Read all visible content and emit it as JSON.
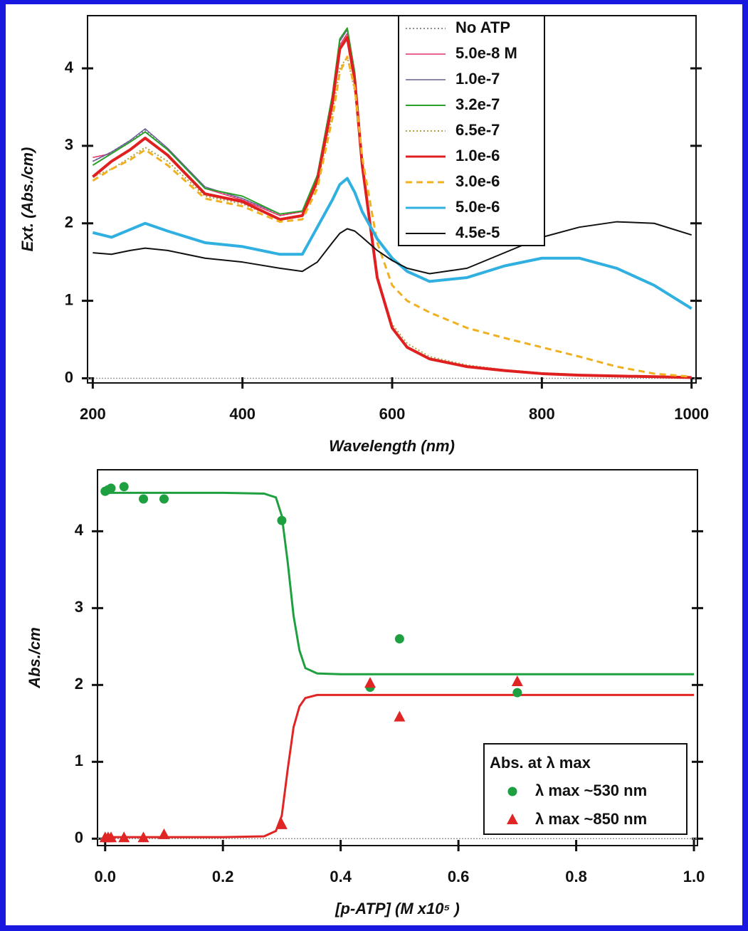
{
  "chart_data": [
    {
      "type": "line",
      "x_label": "Wavelength (nm)",
      "y_label": "Ext. (Abs./cm)",
      "xlim": [
        193,
        1006
      ],
      "ylim": [
        -0.06,
        4.68
      ],
      "xticks": [
        200,
        400,
        600,
        800,
        1000
      ],
      "yticks": [
        0,
        1,
        2,
        3,
        4
      ],
      "legend": "upper right",
      "x": [
        200,
        225,
        250,
        270,
        300,
        350,
        400,
        450,
        480,
        500,
        520,
        530,
        540,
        550,
        560,
        580,
        600,
        620,
        650,
        700,
        750,
        800,
        850,
        900,
        950,
        1000
      ],
      "series": [
        {
          "name": "No ATP",
          "color": "#8a8a8a",
          "style": "dotted",
          "width": 2,
          "values": [
            2.8,
            2.92,
            3.07,
            3.2,
            2.96,
            2.45,
            2.32,
            2.1,
            2.15,
            2.62,
            3.65,
            4.35,
            4.5,
            3.92,
            2.8,
            1.3,
            0.65,
            0.4,
            0.25,
            0.15,
            0.1,
            0.06,
            0.04,
            0.03,
            0.02,
            0.01
          ]
        },
        {
          "name": "5.0e-8 M",
          "color": "#e0306a",
          "style": "solid",
          "width": 1.5,
          "values": [
            2.85,
            2.9,
            3.05,
            3.18,
            2.95,
            2.45,
            2.3,
            2.1,
            2.15,
            2.6,
            3.6,
            4.3,
            4.45,
            3.9,
            2.8,
            1.3,
            0.65,
            0.4,
            0.25,
            0.15,
            0.1,
            0.06,
            0.04,
            0.03,
            0.02,
            0.01
          ]
        },
        {
          "name": "1.0e-7",
          "color": "#6a5a9a",
          "style": "solid",
          "width": 1.5,
          "values": [
            2.8,
            2.92,
            3.07,
            3.22,
            2.97,
            2.47,
            2.32,
            2.12,
            2.16,
            2.62,
            3.65,
            4.35,
            4.5,
            3.95,
            2.82,
            1.3,
            0.65,
            0.4,
            0.25,
            0.15,
            0.1,
            0.06,
            0.04,
            0.03,
            0.02,
            0.01
          ]
        },
        {
          "name": "3.2e-7",
          "color": "#2ca02c",
          "style": "solid",
          "width": 2,
          "values": [
            2.75,
            2.9,
            3.05,
            3.18,
            2.95,
            2.45,
            2.35,
            2.12,
            2.16,
            2.62,
            3.65,
            4.38,
            4.52,
            3.95,
            2.82,
            1.3,
            0.66,
            0.4,
            0.25,
            0.15,
            0.1,
            0.06,
            0.04,
            0.03,
            0.02,
            0.01
          ]
        },
        {
          "name": "6.5e-7",
          "color": "#b0a040",
          "style": "dotted",
          "width": 2,
          "values": [
            2.6,
            2.7,
            2.85,
            2.98,
            2.8,
            2.35,
            2.25,
            2.05,
            2.1,
            2.5,
            3.4,
            4.0,
            4.15,
            3.7,
            2.7,
            1.3,
            0.7,
            0.45,
            0.28,
            0.17,
            0.11,
            0.07,
            0.05,
            0.03,
            0.02,
            0.01
          ]
        },
        {
          "name": "1.0e-6",
          "color": "#e02020",
          "style": "solid",
          "width": 4,
          "values": [
            2.6,
            2.8,
            2.95,
            3.1,
            2.88,
            2.38,
            2.28,
            2.05,
            2.1,
            2.55,
            3.55,
            4.25,
            4.4,
            3.85,
            2.75,
            1.3,
            0.65,
            0.4,
            0.25,
            0.15,
            0.1,
            0.06,
            0.04,
            0.03,
            0.02,
            0.01
          ]
        },
        {
          "name": "3.0e-6",
          "color": "#f0b020",
          "style": "dashed",
          "width": 3,
          "values": [
            2.55,
            2.7,
            2.82,
            2.95,
            2.75,
            2.32,
            2.22,
            2.02,
            2.05,
            2.45,
            3.35,
            3.95,
            4.15,
            3.75,
            2.85,
            1.75,
            1.2,
            1.0,
            0.85,
            0.65,
            0.52,
            0.4,
            0.28,
            0.15,
            0.06,
            0.02
          ]
        },
        {
          "name": "5.0e-6",
          "color": "#30b0e0",
          "style": "solid",
          "width": 4,
          "values": [
            1.88,
            1.82,
            1.92,
            2.0,
            1.9,
            1.75,
            1.7,
            1.6,
            1.6,
            1.95,
            2.3,
            2.5,
            2.58,
            2.4,
            2.15,
            1.8,
            1.55,
            1.38,
            1.25,
            1.3,
            1.45,
            1.55,
            1.55,
            1.42,
            1.2,
            0.9
          ]
        },
        {
          "name": "4.5e-5",
          "color": "#111111",
          "style": "solid",
          "width": 2,
          "values": [
            1.62,
            1.6,
            1.65,
            1.68,
            1.65,
            1.55,
            1.5,
            1.42,
            1.38,
            1.5,
            1.75,
            1.87,
            1.93,
            1.9,
            1.82,
            1.65,
            1.52,
            1.42,
            1.35,
            1.42,
            1.62,
            1.82,
            1.95,
            2.02,
            2.0,
            1.85
          ]
        }
      ]
    },
    {
      "type": "scatter",
      "x_label": "[p-ATP] (M  x10⁵ )",
      "y_label": "Abs./cm",
      "xlim": [
        -0.013,
        1.006
      ],
      "ylim": [
        -0.09,
        4.8
      ],
      "xticks": [
        {
          "value": 0,
          "label": "0.0"
        },
        0.2,
        0.4,
        0.6,
        0.8,
        {
          "value": 1,
          "label": "1.0"
        }
      ],
      "yticks": [
        0,
        1,
        2,
        3,
        4
      ],
      "legend": "lower right",
      "legend_title": "Abs. at λ max",
      "series": [
        {
          "name": "λ max ~530 nm",
          "color": "#1fa040",
          "marker": "circle",
          "x": [
            0,
            0.005,
            0.01,
            0.032,
            0.065,
            0.1,
            0.3,
            0.45,
            0.5,
            0.7
          ],
          "values": [
            4.52,
            4.54,
            4.56,
            4.58,
            4.42,
            4.42,
            4.14,
            1.97,
            2.6,
            1.9
          ]
        },
        {
          "name": "λ max ~850 nm",
          "color": "#e02525",
          "marker": "triangle",
          "x": [
            0,
            0.005,
            0.01,
            0.032,
            0.065,
            0.1,
            0.3,
            0.45,
            0.5,
            0.7
          ],
          "values": [
            0.01,
            0.01,
            0.01,
            0.01,
            0.01,
            0.05,
            0.18,
            2.02,
            1.58,
            2.04
          ]
        }
      ],
      "fits": [
        {
          "color": "#1fa040",
          "x": [
            0,
            0.1,
            0.2,
            0.27,
            0.29,
            0.3,
            0.31,
            0.32,
            0.33,
            0.34,
            0.36,
            0.4,
            0.6,
            0.8,
            1.0
          ],
          "values": [
            4.5,
            4.5,
            4.5,
            4.49,
            4.44,
            4.2,
            3.6,
            2.9,
            2.45,
            2.22,
            2.15,
            2.14,
            2.14,
            2.14,
            2.14
          ]
        },
        {
          "color": "#e02525",
          "x": [
            0,
            0.1,
            0.2,
            0.27,
            0.29,
            0.3,
            0.31,
            0.32,
            0.33,
            0.34,
            0.36,
            0.4,
            0.6,
            0.8,
            1.0
          ],
          "values": [
            0.02,
            0.02,
            0.02,
            0.03,
            0.1,
            0.3,
            0.9,
            1.45,
            1.72,
            1.83,
            1.87,
            1.87,
            1.87,
            1.87,
            1.87
          ]
        }
      ]
    }
  ]
}
